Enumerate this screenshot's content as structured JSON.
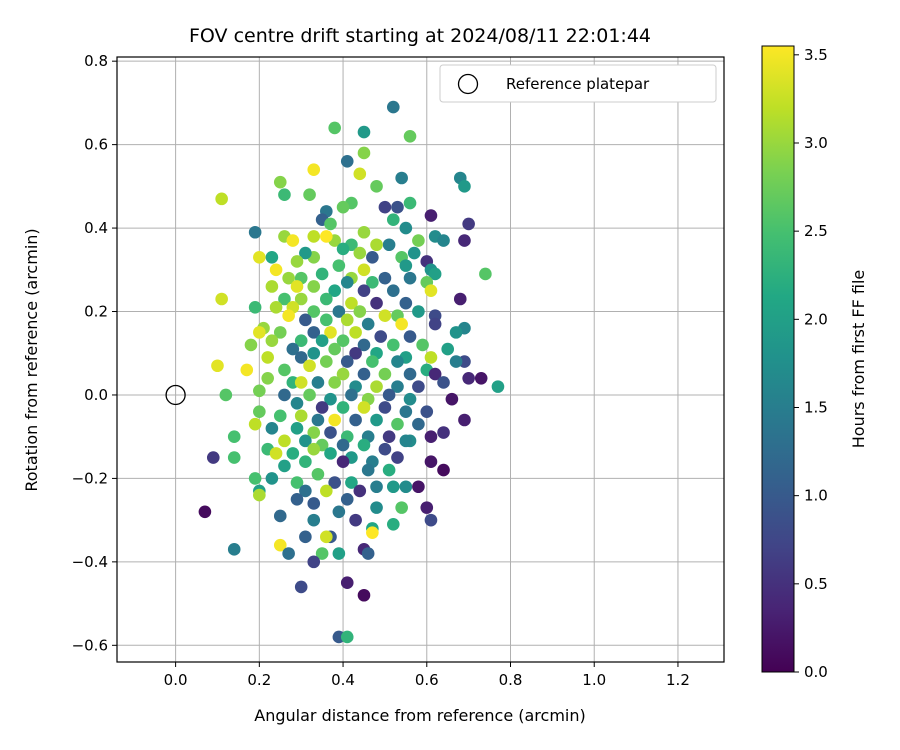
{
  "chart_data": {
    "type": "scatter",
    "title": "FOV centre drift starting at 2024/08/11 22:01:44",
    "xlabel": "Angular distance from reference (arcmin)",
    "ylabel": "Rotation from reference (arcmin)",
    "xlim": [
      -0.14,
      1.31
    ],
    "ylim": [
      -0.64,
      0.81
    ],
    "xticks": [
      0.0,
      0.2,
      0.4,
      0.6,
      0.8,
      1.0,
      1.2
    ],
    "xtick_labels": [
      "0.0",
      "0.2",
      "0.4",
      "0.6",
      "0.8",
      "1.0",
      "1.2"
    ],
    "yticks": [
      -0.6,
      -0.4,
      -0.2,
      0.0,
      0.2,
      0.4,
      0.6,
      0.8
    ],
    "ytick_labels": [
      "−0.6",
      "−0.4",
      "−0.2",
      "0.0",
      "0.2",
      "0.4",
      "0.6",
      "0.8"
    ],
    "grid": true,
    "legend": {
      "position": "top-right",
      "entries": [
        "Reference platepar"
      ]
    },
    "reference_point": {
      "x": 0.0,
      "y": 0.0
    },
    "colorbar": {
      "label": "Hours from first FF file",
      "colormap": "viridis",
      "range": [
        0.0,
        3.55
      ],
      "ticks": [
        0.0,
        0.5,
        1.0,
        1.5,
        2.0,
        2.5,
        3.0,
        3.5
      ],
      "tick_labels": [
        "0.0",
        "0.5",
        "1.0",
        "1.5",
        "2.0",
        "2.5",
        "3.0",
        "3.5"
      ]
    },
    "points": [
      [
        0.52,
        0.69,
        1.4
      ],
      [
        0.38,
        0.64,
        2.6
      ],
      [
        0.45,
        0.63,
        1.9
      ],
      [
        0.56,
        0.62,
        2.7
      ],
      [
        0.45,
        0.58,
        2.9
      ],
      [
        0.41,
        0.56,
        1.3
      ],
      [
        0.33,
        0.54,
        3.5
      ],
      [
        0.44,
        0.53,
        3.3
      ],
      [
        0.68,
        0.52,
        1.6
      ],
      [
        0.54,
        0.52,
        1.5
      ],
      [
        0.69,
        0.5,
        1.9
      ],
      [
        0.48,
        0.5,
        2.7
      ],
      [
        0.25,
        0.51,
        2.9
      ],
      [
        0.32,
        0.48,
        2.7
      ],
      [
        0.26,
        0.48,
        2.4
      ],
      [
        0.11,
        0.47,
        3.2
      ],
      [
        0.42,
        0.46,
        2.6
      ],
      [
        0.4,
        0.45,
        2.7
      ],
      [
        0.56,
        0.46,
        2.4
      ],
      [
        0.5,
        0.45,
        0.7
      ],
      [
        0.53,
        0.45,
        0.9
      ],
      [
        0.36,
        0.44,
        1.4
      ],
      [
        0.61,
        0.43,
        0.3
      ],
      [
        0.52,
        0.42,
        2.3
      ],
      [
        0.35,
        0.42,
        1.1
      ],
      [
        0.37,
        0.41,
        2.6
      ],
      [
        0.7,
        0.41,
        0.6
      ],
      [
        0.55,
        0.4,
        1.7
      ],
      [
        0.19,
        0.39,
        1.4
      ],
      [
        0.45,
        0.39,
        3.0
      ],
      [
        0.62,
        0.38,
        1.7
      ],
      [
        0.58,
        0.37,
        2.8
      ],
      [
        0.26,
        0.38,
        3.0
      ],
      [
        0.38,
        0.37,
        3.0
      ],
      [
        0.69,
        0.37,
        0.4
      ],
      [
        0.64,
        0.37,
        1.6
      ],
      [
        0.51,
        0.36,
        1.5
      ],
      [
        0.48,
        0.36,
        3.1
      ],
      [
        0.42,
        0.36,
        2.4
      ],
      [
        0.33,
        0.38,
        3.2
      ],
      [
        0.28,
        0.37,
        3.5
      ],
      [
        0.36,
        0.38,
        3.6
      ],
      [
        0.4,
        0.35,
        2.2
      ],
      [
        0.44,
        0.34,
        3.0
      ],
      [
        0.57,
        0.34,
        1.8
      ],
      [
        0.54,
        0.33,
        2.6
      ],
      [
        0.47,
        0.33,
        1.0
      ],
      [
        0.33,
        0.33,
        2.9
      ],
      [
        0.31,
        0.34,
        1.9
      ],
      [
        0.2,
        0.33,
        3.4
      ],
      [
        0.23,
        0.33,
        2.1
      ],
      [
        0.29,
        0.32,
        3.0
      ],
      [
        0.6,
        0.32,
        0.5
      ],
      [
        0.55,
        0.31,
        1.9
      ],
      [
        0.61,
        0.3,
        1.8
      ],
      [
        0.45,
        0.3,
        3.3
      ],
      [
        0.24,
        0.3,
        3.5
      ],
      [
        0.39,
        0.31,
        2.5
      ],
      [
        0.62,
        0.29,
        2.0
      ],
      [
        0.74,
        0.29,
        2.6
      ],
      [
        0.35,
        0.29,
        2.3
      ],
      [
        0.42,
        0.28,
        3.0
      ],
      [
        0.5,
        0.28,
        1.1
      ],
      [
        0.56,
        0.28,
        1.4
      ],
      [
        0.3,
        0.28,
        2.6
      ],
      [
        0.27,
        0.28,
        3.0
      ],
      [
        0.41,
        0.27,
        1.6
      ],
      [
        0.47,
        0.27,
        2.4
      ],
      [
        0.6,
        0.27,
        2.7
      ],
      [
        0.23,
        0.26,
        3.1
      ],
      [
        0.29,
        0.26,
        3.4
      ],
      [
        0.33,
        0.26,
        2.9
      ],
      [
        0.52,
        0.25,
        1.3
      ],
      [
        0.45,
        0.25,
        0.7
      ],
      [
        0.38,
        0.25,
        2.1
      ],
      [
        0.61,
        0.25,
        3.4
      ],
      [
        0.68,
        0.23,
        0.3
      ],
      [
        0.26,
        0.23,
        2.5
      ],
      [
        0.3,
        0.23,
        3.0
      ],
      [
        0.36,
        0.23,
        2.4
      ],
      [
        0.42,
        0.22,
        3.2
      ],
      [
        0.48,
        0.22,
        0.5
      ],
      [
        0.55,
        0.22,
        1.1
      ],
      [
        0.11,
        0.23,
        3.3
      ],
      [
        0.19,
        0.21,
        2.4
      ],
      [
        0.24,
        0.21,
        3.1
      ],
      [
        0.28,
        0.21,
        3.3
      ],
      [
        0.33,
        0.2,
        2.6
      ],
      [
        0.39,
        0.2,
        1.4
      ],
      [
        0.44,
        0.2,
        2.9
      ],
      [
        0.5,
        0.19,
        3.3
      ],
      [
        0.53,
        0.19,
        2.7
      ],
      [
        0.58,
        0.2,
        1.9
      ],
      [
        0.62,
        0.19,
        0.8
      ],
      [
        0.27,
        0.19,
        3.5
      ],
      [
        0.31,
        0.18,
        1.0
      ],
      [
        0.36,
        0.18,
        2.5
      ],
      [
        0.41,
        0.18,
        3.1
      ],
      [
        0.46,
        0.17,
        1.5
      ],
      [
        0.54,
        0.17,
        3.5
      ],
      [
        0.62,
        0.17,
        0.7
      ],
      [
        0.69,
        0.16,
        1.6
      ],
      [
        0.21,
        0.16,
        3.0
      ],
      [
        0.25,
        0.15,
        2.8
      ],
      [
        0.33,
        0.15,
        1.1
      ],
      [
        0.37,
        0.15,
        3.4
      ],
      [
        0.43,
        0.15,
        3.2
      ],
      [
        0.49,
        0.14,
        0.8
      ],
      [
        0.56,
        0.14,
        1.0
      ],
      [
        0.67,
        0.15,
        1.8
      ],
      [
        0.2,
        0.15,
        3.4
      ],
      [
        0.3,
        0.13,
        2.4
      ],
      [
        0.35,
        0.13,
        2.0
      ],
      [
        0.4,
        0.13,
        2.6
      ],
      [
        0.45,
        0.12,
        1.2
      ],
      [
        0.52,
        0.12,
        2.5
      ],
      [
        0.59,
        0.12,
        2.6
      ],
      [
        0.65,
        0.11,
        2.0
      ],
      [
        0.18,
        0.12,
        2.9
      ],
      [
        0.23,
        0.13,
        3.0
      ],
      [
        0.28,
        0.11,
        1.3
      ],
      [
        0.33,
        0.1,
        1.8
      ],
      [
        0.38,
        0.11,
        2.7
      ],
      [
        0.43,
        0.1,
        0.6
      ],
      [
        0.48,
        0.1,
        2.1
      ],
      [
        0.55,
        0.09,
        2.0
      ],
      [
        0.61,
        0.09,
        3.2
      ],
      [
        0.22,
        0.09,
        3.2
      ],
      [
        0.3,
        0.09,
        1.2
      ],
      [
        0.36,
        0.08,
        2.8
      ],
      [
        0.41,
        0.08,
        1.0
      ],
      [
        0.47,
        0.08,
        2.5
      ],
      [
        0.53,
        0.08,
        1.6
      ],
      [
        0.69,
        0.08,
        0.8
      ],
      [
        0.67,
        0.08,
        1.5
      ],
      [
        0.32,
        0.07,
        3.3
      ],
      [
        0.1,
        0.07,
        3.4
      ],
      [
        0.17,
        0.06,
        3.5
      ],
      [
        0.26,
        0.06,
        2.6
      ],
      [
        0.4,
        0.05,
        3.0
      ],
      [
        0.45,
        0.05,
        1.1
      ],
      [
        0.5,
        0.05,
        2.8
      ],
      [
        0.56,
        0.05,
        1.2
      ],
      [
        0.6,
        0.06,
        2.2
      ],
      [
        0.62,
        0.05,
        0.4
      ],
      [
        0.7,
        0.04,
        0.4
      ],
      [
        0.73,
        0.04,
        0.2
      ],
      [
        0.77,
        0.02,
        2.0
      ],
      [
        0.22,
        0.04,
        2.9
      ],
      [
        0.28,
        0.03,
        2.3
      ],
      [
        0.34,
        0.03,
        1.5
      ],
      [
        0.38,
        0.03,
        2.9
      ],
      [
        0.43,
        0.02,
        1.7
      ],
      [
        0.48,
        0.02,
        3.1
      ],
      [
        0.53,
        0.02,
        1.5
      ],
      [
        0.58,
        0.02,
        0.8
      ],
      [
        0.64,
        0.03,
        0.9
      ],
      [
        0.3,
        0.03,
        3.3
      ],
      [
        0.2,
        0.01,
        2.8
      ],
      [
        0.26,
        0.0,
        1.2
      ],
      [
        0.32,
        0.0,
        2.7
      ],
      [
        0.37,
        -0.01,
        1.8
      ],
      [
        0.42,
        0.0,
        1.3
      ],
      [
        0.46,
        -0.01,
        2.9
      ],
      [
        0.51,
        0.0,
        1.0
      ],
      [
        0.56,
        -0.01,
        1.7
      ],
      [
        0.66,
        -0.01,
        0.2
      ],
      [
        0.12,
        0.0,
        2.6
      ],
      [
        0.29,
        -0.02,
        1.6
      ],
      [
        0.35,
        -0.03,
        0.6
      ],
      [
        0.4,
        -0.03,
        2.3
      ],
      [
        0.45,
        -0.03,
        3.3
      ],
      [
        0.5,
        -0.03,
        0.8
      ],
      [
        0.55,
        -0.04,
        1.4
      ],
      [
        0.6,
        -0.04,
        0.9
      ],
      [
        0.2,
        -0.04,
        2.7
      ],
      [
        0.25,
        -0.05,
        2.5
      ],
      [
        0.3,
        -0.05,
        3.1
      ],
      [
        0.34,
        -0.06,
        1.4
      ],
      [
        0.38,
        -0.06,
        3.5
      ],
      [
        0.43,
        -0.06,
        1.1
      ],
      [
        0.48,
        -0.06,
        1.9
      ],
      [
        0.53,
        -0.07,
        2.6
      ],
      [
        0.58,
        -0.07,
        1.2
      ],
      [
        0.69,
        -0.06,
        0.3
      ],
      [
        0.19,
        -0.07,
        3.2
      ],
      [
        0.23,
        -0.08,
        1.6
      ],
      [
        0.29,
        -0.08,
        2.0
      ],
      [
        0.33,
        -0.09,
        2.9
      ],
      [
        0.37,
        -0.09,
        0.9
      ],
      [
        0.41,
        -0.1,
        2.4
      ],
      [
        0.46,
        -0.1,
        1.5
      ],
      [
        0.51,
        -0.1,
        0.6
      ],
      [
        0.56,
        -0.11,
        1.7
      ],
      [
        0.61,
        -0.1,
        0.3
      ],
      [
        0.64,
        -0.09,
        0.5
      ],
      [
        0.14,
        -0.1,
        2.5
      ],
      [
        0.26,
        -0.11,
        3.2
      ],
      [
        0.31,
        -0.11,
        1.8
      ],
      [
        0.35,
        -0.12,
        2.7
      ],
      [
        0.4,
        -0.12,
        1.2
      ],
      [
        0.45,
        -0.12,
        2.2
      ],
      [
        0.5,
        -0.13,
        0.8
      ],
      [
        0.55,
        -0.11,
        1.6
      ],
      [
        0.22,
        -0.13,
        2.4
      ],
      [
        0.28,
        -0.14,
        2.2
      ],
      [
        0.33,
        -0.13,
        3.0
      ],
      [
        0.37,
        -0.14,
        2.1
      ],
      [
        0.24,
        -0.14,
        3.3
      ],
      [
        0.14,
        -0.15,
        2.5
      ],
      [
        0.09,
        -0.15,
        0.6
      ],
      [
        0.42,
        -0.15,
        1.9
      ],
      [
        0.47,
        -0.16,
        1.5
      ],
      [
        0.53,
        -0.15,
        0.7
      ],
      [
        0.31,
        -0.16,
        2.3
      ],
      [
        0.4,
        -0.16,
        0.4
      ],
      [
        0.26,
        -0.17,
        2.0
      ],
      [
        0.46,
        -0.18,
        1.4
      ],
      [
        0.51,
        -0.18,
        2.2
      ],
      [
        0.61,
        -0.16,
        0.2
      ],
      [
        0.64,
        -0.18,
        0.1
      ],
      [
        0.34,
        -0.19,
        2.6
      ],
      [
        0.23,
        -0.2,
        1.8
      ],
      [
        0.29,
        -0.21,
        2.5
      ],
      [
        0.38,
        -0.21,
        0.9
      ],
      [
        0.42,
        -0.21,
        2.1
      ],
      [
        0.48,
        -0.22,
        1.5
      ],
      [
        0.55,
        -0.22,
        1.7
      ],
      [
        0.19,
        -0.2,
        2.5
      ],
      [
        0.52,
        -0.22,
        1.9
      ],
      [
        0.58,
        -0.22,
        0.2
      ],
      [
        0.2,
        -0.23,
        2.0
      ],
      [
        0.31,
        -0.23,
        1.3
      ],
      [
        0.36,
        -0.23,
        3.2
      ],
      [
        0.2,
        -0.24,
        3.1
      ],
      [
        0.29,
        -0.25,
        1.1
      ],
      [
        0.33,
        -0.26,
        1.0
      ],
      [
        0.41,
        -0.25,
        1.1
      ],
      [
        0.44,
        -0.23,
        0.5
      ],
      [
        0.6,
        -0.27,
        0.3
      ],
      [
        0.54,
        -0.27,
        2.6
      ],
      [
        0.48,
        -0.27,
        1.7
      ],
      [
        0.39,
        -0.28,
        1.4
      ],
      [
        0.07,
        -0.28,
        0.1
      ],
      [
        0.25,
        -0.29,
        1.2
      ],
      [
        0.33,
        -0.3,
        1.5
      ],
      [
        0.43,
        -0.3,
        0.6
      ],
      [
        0.52,
        -0.31,
        2.2
      ],
      [
        0.61,
        -0.3,
        0.8
      ],
      [
        0.47,
        -0.32,
        2.1
      ],
      [
        0.37,
        -0.34,
        1.0
      ],
      [
        0.47,
        -0.33,
        3.6
      ],
      [
        0.25,
        -0.36,
        3.5
      ],
      [
        0.36,
        -0.34,
        3.3
      ],
      [
        0.14,
        -0.37,
        1.5
      ],
      [
        0.27,
        -0.38,
        1.3
      ],
      [
        0.35,
        -0.38,
        2.6
      ],
      [
        0.39,
        -0.38,
        2.0
      ],
      [
        0.45,
        -0.37,
        0.4
      ],
      [
        0.46,
        -0.38,
        1.1
      ],
      [
        0.31,
        -0.34,
        1.1
      ],
      [
        0.33,
        -0.4,
        0.7
      ],
      [
        0.41,
        -0.45,
        0.3
      ],
      [
        0.3,
        -0.46,
        0.8
      ],
      [
        0.45,
        -0.48,
        0.1
      ],
      [
        0.39,
        -0.58,
        1.0
      ],
      [
        0.41,
        -0.58,
        2.3
      ]
    ]
  }
}
